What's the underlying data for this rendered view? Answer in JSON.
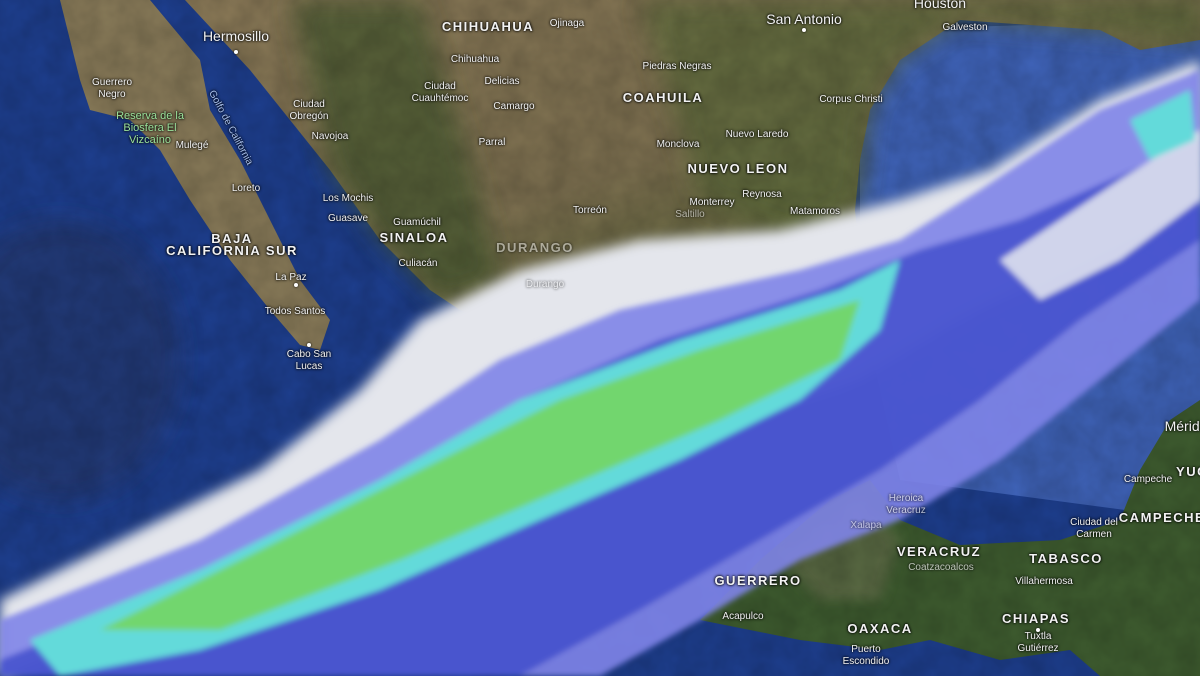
{
  "map": {
    "type": "satellite with weather radar overlay",
    "colors": {
      "ocean": "#1e3f8f",
      "gulf": "#3f63b8",
      "land_desert": "#8a7a5a",
      "land_forest": "#3f5a32",
      "cloud": "#e6e8ee",
      "radar_light": "#7f84e8",
      "radar_blue": "#3846c9",
      "radar_cyan": "#63e0e0",
      "radar_green": "#6fd86a"
    },
    "labels": {
      "states": [
        "CHIHUAHUA",
        "COAHUILA",
        "NUEVO LEON",
        "BAJA CALIFORNIA SUR",
        "SINALOA",
        "DURANGO",
        "VERACRUZ",
        "TABASCO",
        "CAMPECHE",
        "CHIAPAS",
        "OAXACA",
        "GUERRERO",
        "YUC"
      ],
      "cities": [
        "Hermosillo",
        "Ojinaga",
        "San Antonio",
        "Houston",
        "Galveston",
        "Chihuahua",
        "Piedras Negras",
        "Ciudad Cuauhtémoc",
        "Delicias",
        "Camargo",
        "Corpus Christi",
        "Nuevo Laredo",
        "Monclova",
        "Reynosa",
        "Monterrey",
        "Matamoros",
        "Saltillo",
        "Torreón",
        "Parral",
        "Guerrero Negro",
        "Mulegé",
        "Ciudad Obregón",
        "Navojoa",
        "Loreto",
        "Los Mochis",
        "Guasave",
        "Guamúchil",
        "Culiacán",
        "La Paz",
        "Todos Santos",
        "Cabo San Lucas",
        "Durango",
        "Heroica Veracruz",
        "Xalapa",
        "Coatzacoalcos",
        "Villahermosa",
        "Ciudad del Carmen",
        "Campeche",
        "Mérida",
        "Acapulco",
        "Puerto Escondido",
        "Tuxtla Gutiérrez"
      ],
      "features": [
        "Golfo de California",
        "Reserva de la Biosfera El Vizcaíno"
      ]
    }
  }
}
